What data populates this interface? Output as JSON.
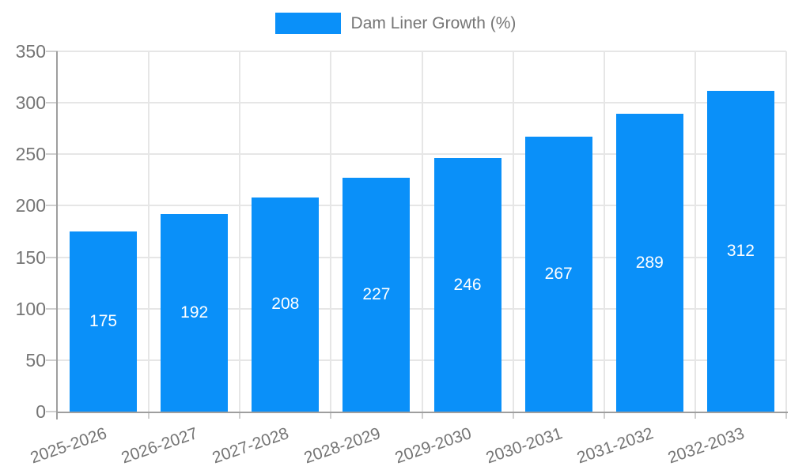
{
  "chart_data": {
    "type": "bar",
    "title": "Dam Liner Growth (%)",
    "legend": {
      "label": "Dam Liner Growth (%)",
      "position": "top-center"
    },
    "categories": [
      "2025-2026",
      "2026-2027",
      "2027-2028",
      "2028-2029",
      "2029-2030",
      "2030-2031",
      "2031-2032",
      "2032-2033"
    ],
    "values": [
      175,
      192,
      208,
      227,
      246,
      267,
      289,
      312
    ],
    "xlabel": "",
    "ylabel": "",
    "ylim": [
      0,
      350
    ],
    "yticks": [
      0,
      50,
      100,
      150,
      200,
      250,
      300,
      350
    ],
    "grid": true,
    "bar_value_labels_visible": true,
    "colors": {
      "bar": "#0a90f9",
      "bar_value_text": "#ffffff",
      "axis_text": "#757575",
      "gridline": "#e6e6e6",
      "axis_line": "#9e9e9e",
      "tick": "#cfcfcf",
      "background": "#ffffff"
    }
  }
}
